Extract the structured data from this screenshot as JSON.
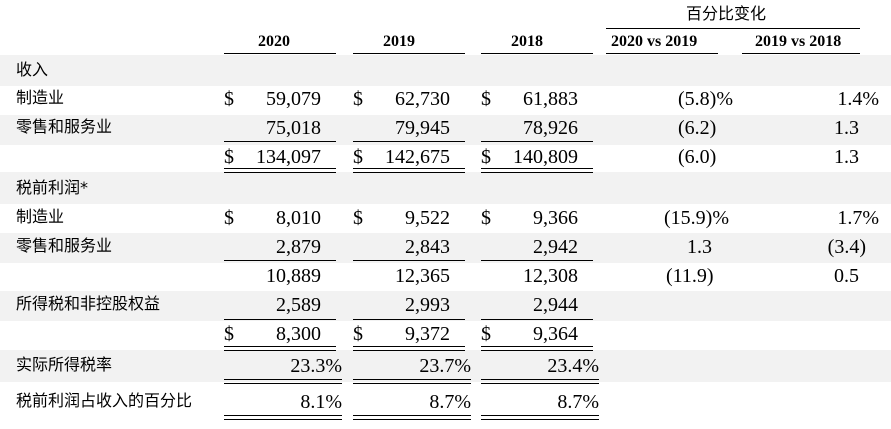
{
  "header": {
    "group_label": "百分比变化",
    "years": [
      "2020",
      "2019",
      "2018"
    ],
    "changes": [
      "2020 vs 2019",
      "2019 vs 2018"
    ]
  },
  "sections": {
    "revenue": "收入",
    "pretax": "税前利润*"
  },
  "rows": {
    "rev_mfg": {
      "label": "制造业",
      "cur": "$",
      "v2020": "59,079",
      "v2019": "62,730",
      "v2018": "61,883",
      "c1": "(5.8)%",
      "c2": "1.4%"
    },
    "rev_retail": {
      "label": "零售和服务业",
      "v2020": "75,018",
      "v2019": "79,945",
      "v2018": "78,926",
      "c1": "(6.2)",
      "c2": "1.3"
    },
    "rev_total": {
      "cur": "$",
      "v2020": "134,097",
      "v2019": "142,675",
      "v2018": "140,809",
      "c1": "(6.0)",
      "c2": "1.3"
    },
    "pt_mfg": {
      "label": "制造业",
      "cur": "$",
      "v2020": "8,010",
      "v2019": "9,522",
      "v2018": "9,366",
      "c1": "(15.9)%",
      "c2": "1.7%"
    },
    "pt_retail": {
      "label": "零售和服务业",
      "v2020": "2,879",
      "v2019": "2,843",
      "v2018": "2,942",
      "c1": "1.3",
      "c2": "(3.4)"
    },
    "pt_sub": {
      "v2020": "10,889",
      "v2019": "12,365",
      "v2018": "12,308",
      "c1": "(11.9)",
      "c2": "0.5"
    },
    "tax": {
      "label": "所得税和非控股权益",
      "v2020": "2,589",
      "v2019": "2,993",
      "v2018": "2,944"
    },
    "net": {
      "cur": "$",
      "v2020": "8,300",
      "v2019": "9,372",
      "v2018": "9,364"
    },
    "rate": {
      "label": "实际所得税率",
      "v2020": "23.3%",
      "v2019": "23.7%",
      "v2018": "23.4%"
    },
    "margin": {
      "label": "税前利润占收入的百分比",
      "v2020": "8.1%",
      "v2019": "8.7%",
      "v2018": "8.7%"
    }
  }
}
